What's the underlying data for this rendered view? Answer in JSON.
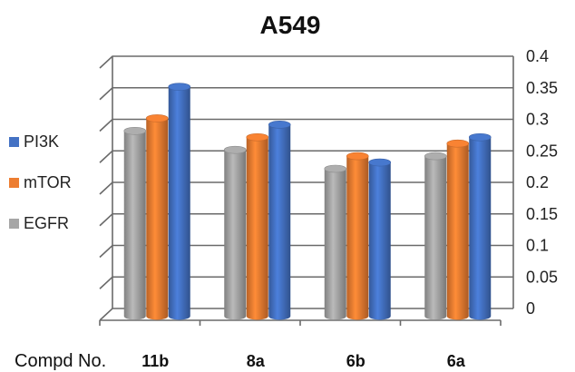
{
  "chart_data": {
    "type": "bar",
    "title": "A549",
    "xlabel": "Compd No.",
    "ylabel": "",
    "categories": [
      "11b",
      "8a",
      "6b",
      "6a"
    ],
    "series": [
      {
        "name": "EGFR",
        "values": [
          0.29,
          0.26,
          0.23,
          0.25
        ],
        "color": "#a6a6a6"
      },
      {
        "name": "mTOR",
        "values": [
          0.31,
          0.28,
          0.25,
          0.27
        ],
        "color": "#ed7d31"
      },
      {
        "name": "PI3K",
        "values": [
          0.36,
          0.3,
          0.24,
          0.28
        ],
        "color": "#4472c4"
      }
    ],
    "ylim": [
      0,
      0.4
    ],
    "yticks": [
      "0",
      "0.05",
      "0.1",
      "0.15",
      "0.2",
      "0.25",
      "0.3",
      "0.35",
      "0.4"
    ],
    "grid": true,
    "legend_position": "left",
    "legend_order": [
      "PI3K",
      "mTOR",
      "EGFR"
    ]
  }
}
